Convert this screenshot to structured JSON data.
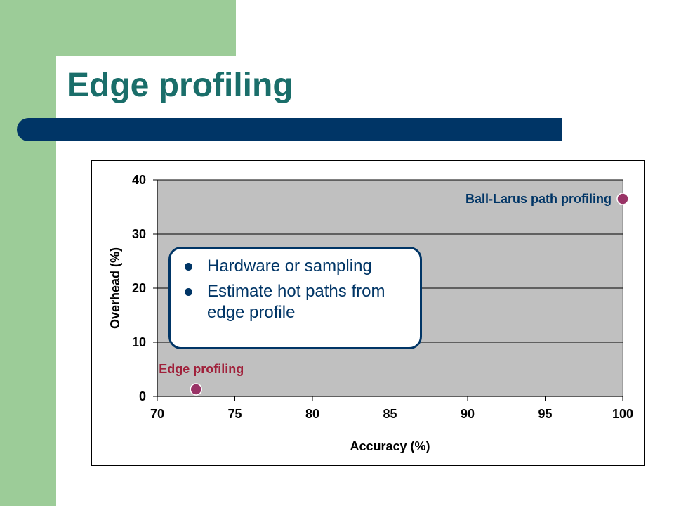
{
  "slide": {
    "title": "Edge profiling",
    "bullets": [
      "Hardware or sampling",
      "Estimate hot paths from edge profile"
    ]
  },
  "colors": {
    "title": "#1a6e6a",
    "accent_bar": "#003566",
    "sidebar": "#9ccc98",
    "plot_background": "#c0c0c0",
    "point": "#993366",
    "edge_label": "#a0203a",
    "path_label": "#003566"
  },
  "chart_data": {
    "type": "scatter",
    "xlabel": "Accuracy (%)",
    "ylabel": "Overhead (%)",
    "xlim": [
      70,
      100
    ],
    "ylim": [
      0,
      40
    ],
    "xticks": [
      70,
      75,
      80,
      85,
      90,
      95,
      100
    ],
    "yticks": [
      0,
      10,
      20,
      30,
      40
    ],
    "grid": "horizontal",
    "legend": "none",
    "points": [
      {
        "label": "Edge profiling",
        "x": 72.5,
        "y": 1.3
      },
      {
        "label": "Ball-Larus path profiling",
        "x": 100,
        "y": 36.5
      }
    ]
  }
}
